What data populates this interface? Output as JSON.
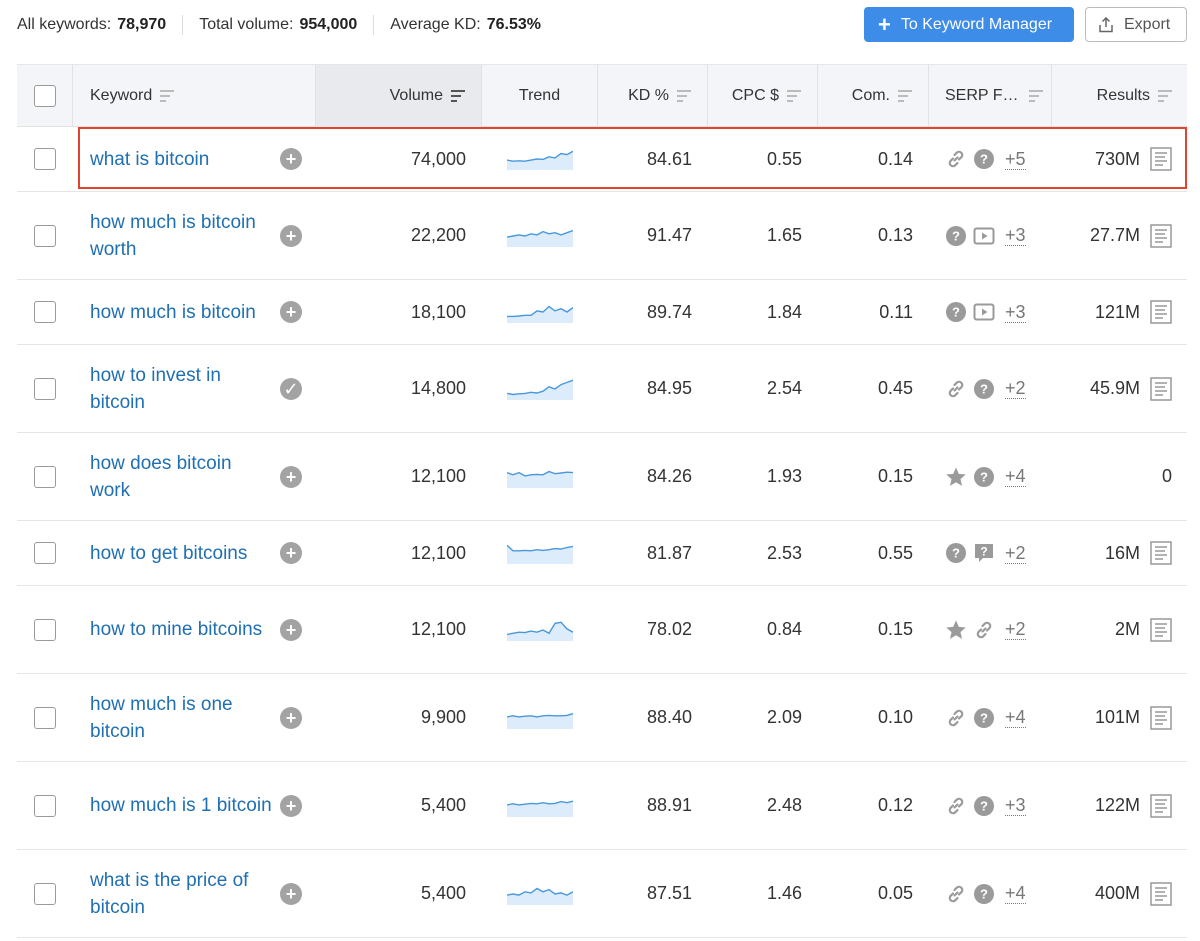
{
  "summary": {
    "all_keywords_label": "All keywords:",
    "all_keywords_value": "78,970",
    "total_volume_label": "Total volume:",
    "total_volume_value": "954,000",
    "avg_kd_label": "Average KD:",
    "avg_kd_value": "76.53%"
  },
  "toolbar": {
    "keyword_manager_label": "To Keyword Manager",
    "export_label": "Export"
  },
  "columns": {
    "keyword": "Keyword",
    "volume": "Volume",
    "trend": "Trend",
    "kd": "KD %",
    "cpc": "CPC $",
    "com": "Com.",
    "serp": "SERP F…",
    "results": "Results"
  },
  "colors": {
    "link": "#1f6fb2",
    "accent": "#3d8ce8",
    "highlight": "#e2432e",
    "trend_line": "#4a98dc",
    "trend_fill": "#dcecfb"
  },
  "rows": [
    {
      "keyword": "what is bitcoin",
      "action": "add-icon",
      "volume": "74,000",
      "trend": [
        0.45,
        0.4,
        0.42,
        0.4,
        0.45,
        0.5,
        0.48,
        0.6,
        0.55,
        0.75,
        0.7,
        0.85
      ],
      "kd": "84.61",
      "cpc": "0.55",
      "com": "0.14",
      "serp_icons": [
        "link-icon",
        "question-icon"
      ],
      "serp_more": "+5",
      "results": "730M",
      "has_doc": true
    },
    {
      "keyword": "how much is bitcoin worth",
      "action": "add-icon",
      "volume": "22,200",
      "trend": [
        0.45,
        0.5,
        0.55,
        0.5,
        0.6,
        0.55,
        0.7,
        0.6,
        0.65,
        0.55,
        0.65,
        0.75
      ],
      "kd": "91.47",
      "cpc": "1.65",
      "com": "0.13",
      "serp_icons": [
        "question-icon",
        "video-icon"
      ],
      "serp_more": "+3",
      "results": "27.7M",
      "has_doc": true
    },
    {
      "keyword": "how much is bitcoin",
      "action": "add-icon",
      "volume": "18,100",
      "trend": [
        0.3,
        0.3,
        0.32,
        0.35,
        0.35,
        0.55,
        0.5,
        0.75,
        0.55,
        0.65,
        0.5,
        0.7
      ],
      "kd": "89.74",
      "cpc": "1.84",
      "com": "0.11",
      "serp_icons": [
        "question-icon",
        "video-icon"
      ],
      "serp_more": "+3",
      "results": "121M",
      "has_doc": true
    },
    {
      "keyword": "how to invest in bitcoin",
      "action": "check-icon",
      "volume": "14,800",
      "trend": [
        0.3,
        0.25,
        0.28,
        0.3,
        0.35,
        0.32,
        0.4,
        0.6,
        0.5,
        0.7,
        0.8,
        0.9
      ],
      "kd": "84.95",
      "cpc": "2.54",
      "com": "0.45",
      "serp_icons": [
        "link-icon",
        "question-icon"
      ],
      "serp_more": "+2",
      "results": "45.9M",
      "has_doc": true
    },
    {
      "keyword": "how does bitcoin work",
      "action": "add-icon",
      "volume": "12,100",
      "trend": [
        0.7,
        0.6,
        0.7,
        0.55,
        0.6,
        0.62,
        0.6,
        0.75,
        0.65,
        0.68,
        0.72,
        0.7
      ],
      "kd": "84.26",
      "cpc": "1.93",
      "com": "0.15",
      "serp_icons": [
        "star-icon",
        "question-icon"
      ],
      "serp_more": "+4",
      "results": "0",
      "has_doc": false
    },
    {
      "keyword": "how to get bitcoins",
      "action": "add-icon",
      "volume": "12,100",
      "trend": [
        0.85,
        0.6,
        0.6,
        0.62,
        0.6,
        0.65,
        0.62,
        0.65,
        0.7,
        0.68,
        0.75,
        0.8
      ],
      "kd": "81.87",
      "cpc": "2.53",
      "com": "0.55",
      "serp_icons": [
        "question-icon",
        "comment-question-icon"
      ],
      "serp_more": "+2",
      "results": "16M",
      "has_doc": true
    },
    {
      "keyword": "how to mine bitcoins",
      "action": "add-icon",
      "volume": "12,100",
      "trend": [
        0.3,
        0.35,
        0.4,
        0.38,
        0.45,
        0.4,
        0.5,
        0.35,
        0.8,
        0.85,
        0.55,
        0.4
      ],
      "kd": "78.02",
      "cpc": "0.84",
      "com": "0.15",
      "serp_icons": [
        "star-icon",
        "link-icon"
      ],
      "serp_more": "+2",
      "results": "2M",
      "has_doc": true
    },
    {
      "keyword": "how much is one bitcoin",
      "action": "add-icon",
      "volume": "9,900",
      "trend": [
        0.55,
        0.6,
        0.55,
        0.58,
        0.6,
        0.55,
        0.6,
        0.62,
        0.6,
        0.6,
        0.62,
        0.7
      ],
      "kd": "88.40",
      "cpc": "2.09",
      "com": "0.10",
      "serp_icons": [
        "link-icon",
        "question-icon"
      ],
      "serp_more": "+4",
      "results": "101M",
      "has_doc": true
    },
    {
      "keyword": "how much is 1 bitcoin",
      "action": "add-icon",
      "volume": "5,400",
      "trend": [
        0.55,
        0.6,
        0.55,
        0.58,
        0.62,
        0.6,
        0.65,
        0.6,
        0.62,
        0.7,
        0.65,
        0.72
      ],
      "kd": "88.91",
      "cpc": "2.48",
      "com": "0.12",
      "serp_icons": [
        "link-icon",
        "question-icon"
      ],
      "serp_more": "+3",
      "results": "122M",
      "has_doc": true
    },
    {
      "keyword": "what is the price of bitcoin",
      "action": "add-icon",
      "volume": "5,400",
      "trend": [
        0.45,
        0.5,
        0.45,
        0.6,
        0.55,
        0.75,
        0.6,
        0.7,
        0.5,
        0.55,
        0.45,
        0.6
      ],
      "kd": "87.51",
      "cpc": "1.46",
      "com": "0.05",
      "serp_icons": [
        "link-icon",
        "question-icon"
      ],
      "serp_more": "+4",
      "results": "400M",
      "has_doc": true
    }
  ]
}
